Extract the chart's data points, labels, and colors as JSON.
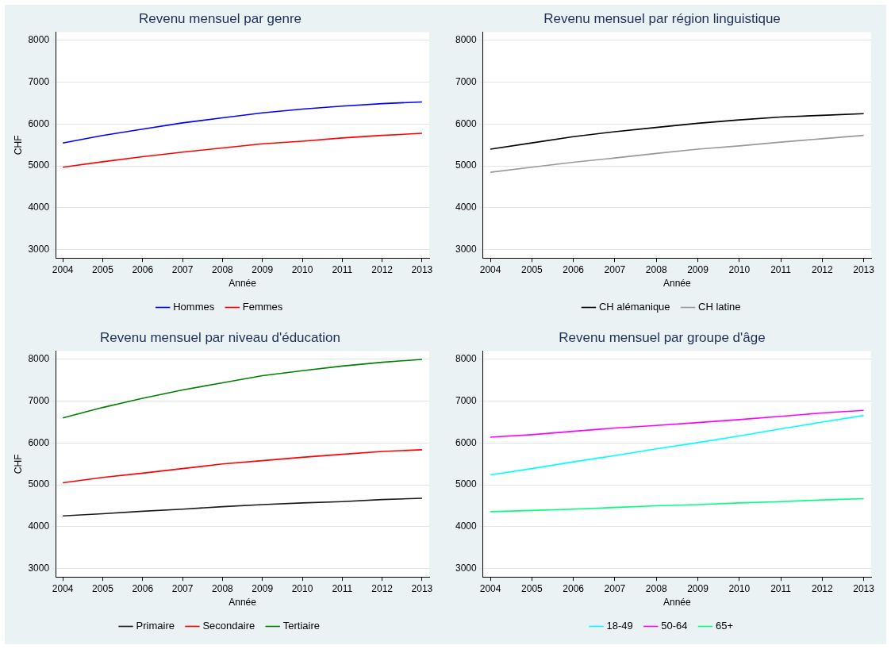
{
  "chart_data": [
    {
      "type": "line",
      "title": "Revenu mensuel par genre",
      "xlabel": "Année",
      "ylabel": "CHF",
      "x": [
        2004,
        2005,
        2006,
        2007,
        2008,
        2009,
        2010,
        2011,
        2012,
        2013
      ],
      "xlim": [
        2003.82,
        2013.18
      ],
      "xticks": [
        2004,
        2005,
        2006,
        2007,
        2008,
        2009,
        2010,
        2011,
        2012,
        2013
      ],
      "ylim": [
        2800,
        8200
      ],
      "yticks": [
        3000,
        4000,
        5000,
        6000,
        7000,
        8000
      ],
      "grid": "y",
      "legend": "bottom",
      "marker": "none",
      "series": [
        {
          "name": "Hommes",
          "color": "#0000ff",
          "values": [
            5550,
            5730,
            5880,
            6030,
            6150,
            6270,
            6360,
            6430,
            6490,
            6530
          ]
        },
        {
          "name": "Femmes",
          "color": "#ff0000",
          "values": [
            4970,
            5100,
            5220,
            5330,
            5430,
            5530,
            5590,
            5670,
            5730,
            5780
          ]
        }
      ]
    },
    {
      "type": "line",
      "title": "Revenu mensuel par région linguistique",
      "xlabel": "Année",
      "x": [
        2004,
        2005,
        2006,
        2007,
        2008,
        2009,
        2010,
        2011,
        2012,
        2013
      ],
      "xlim": [
        2003.82,
        2013.18
      ],
      "xticks": [
        2004,
        2005,
        2006,
        2007,
        2008,
        2009,
        2010,
        2011,
        2012,
        2013
      ],
      "ylim": [
        2800,
        8200
      ],
      "yticks": [
        3000,
        4000,
        5000,
        6000,
        7000,
        8000
      ],
      "grid": "y",
      "legend": "bottom",
      "marker": "none",
      "series": [
        {
          "name": "CH alémanique",
          "color": "#000000",
          "values": [
            5400,
            5550,
            5700,
            5820,
            5920,
            6020,
            6100,
            6170,
            6210,
            6250
          ]
        },
        {
          "name": "CH latine",
          "color": "#999999",
          "values": [
            4850,
            4970,
            5090,
            5190,
            5300,
            5400,
            5480,
            5570,
            5650,
            5730
          ]
        }
      ]
    },
    {
      "type": "line",
      "title": "Revenu mensuel par niveau d'éducation",
      "xlabel": "Année",
      "ylabel": "CHF",
      "x": [
        2004,
        2005,
        2006,
        2007,
        2008,
        2009,
        2010,
        2011,
        2012,
        2013
      ],
      "xlim": [
        2003.82,
        2013.18
      ],
      "xticks": [
        2004,
        2005,
        2006,
        2007,
        2008,
        2009,
        2010,
        2011,
        2012,
        2013
      ],
      "ylim": [
        2800,
        8200
      ],
      "yticks": [
        3000,
        4000,
        5000,
        6000,
        7000,
        8000
      ],
      "grid": "y",
      "legend": "bottom",
      "marker": "none",
      "series": [
        {
          "name": "Primaire",
          "color": "#1a1a1a",
          "values": [
            4260,
            4310,
            4370,
            4420,
            4480,
            4530,
            4570,
            4600,
            4650,
            4680
          ]
        },
        {
          "name": "Secondaire",
          "color": "#ff0000",
          "values": [
            5050,
            5180,
            5280,
            5390,
            5500,
            5580,
            5660,
            5730,
            5800,
            5840
          ]
        },
        {
          "name": "Tertiaire",
          "color": "#008000",
          "values": [
            6600,
            6850,
            7070,
            7270,
            7440,
            7610,
            7730,
            7840,
            7930,
            8000
          ]
        }
      ]
    },
    {
      "type": "line",
      "title": "Revenu mensuel par groupe d'âge",
      "xlabel": "Année",
      "x": [
        2004,
        2005,
        2006,
        2007,
        2008,
        2009,
        2010,
        2011,
        2012,
        2013
      ],
      "xlim": [
        2003.82,
        2013.18
      ],
      "xticks": [
        2004,
        2005,
        2006,
        2007,
        2008,
        2009,
        2010,
        2011,
        2012,
        2013
      ],
      "ylim": [
        2800,
        8200
      ],
      "yticks": [
        3000,
        4000,
        5000,
        6000,
        7000,
        8000
      ],
      "grid": "y",
      "legend": "bottom",
      "marker": "none",
      "series": [
        {
          "name": "18-49",
          "color": "#00ffff",
          "values": [
            5240,
            5390,
            5550,
            5700,
            5860,
            6010,
            6170,
            6340,
            6500,
            6660
          ]
        },
        {
          "name": "50-64",
          "color": "#ff00ff",
          "values": [
            6140,
            6200,
            6280,
            6360,
            6420,
            6490,
            6560,
            6640,
            6720,
            6780
          ]
        },
        {
          "name": "65+",
          "color": "#00ff7f",
          "values": [
            4360,
            4390,
            4420,
            4460,
            4500,
            4530,
            4570,
            4600,
            4640,
            4670
          ]
        }
      ]
    }
  ]
}
